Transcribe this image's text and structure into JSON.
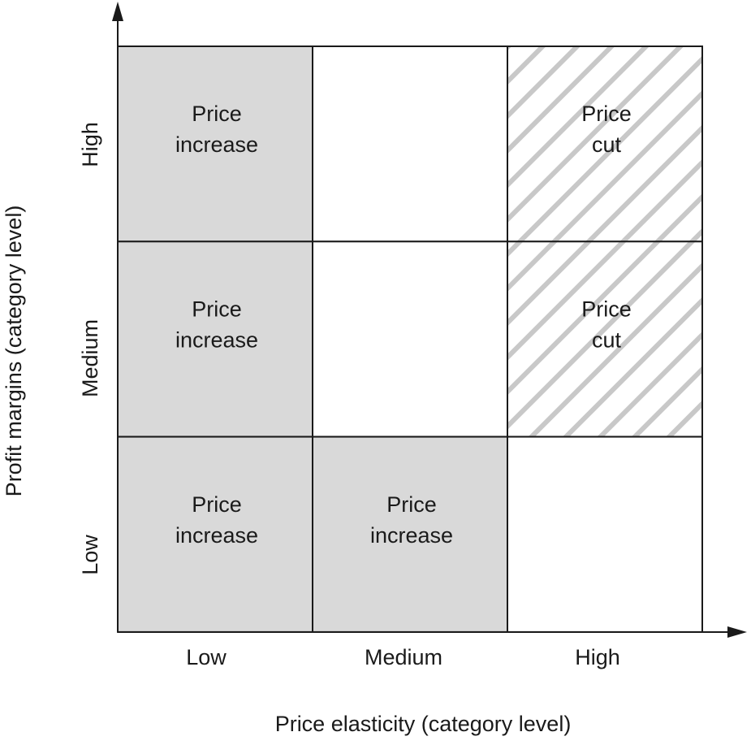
{
  "diagram": {
    "x_axis": {
      "title": "Price elasticity (category level)",
      "ticks": [
        "Low",
        "Medium",
        "High"
      ]
    },
    "y_axis": {
      "title": "Profit margins (category level)",
      "ticks": [
        "High",
        "Medium",
        "Low"
      ]
    },
    "colors": {
      "increase_fill": "#d9d9d9",
      "hatch": "#c8c8c8",
      "grid": "#1a1a1a"
    },
    "rows": [
      {
        "margin": "High",
        "cells": [
          {
            "elasticity": "Low",
            "style": "increase",
            "line1": "Price",
            "line2": "increase"
          },
          {
            "elasticity": "Medium",
            "style": "blank",
            "line1": "",
            "line2": ""
          },
          {
            "elasticity": "High",
            "style": "cut",
            "line1": "Price",
            "line2": "cut"
          }
        ]
      },
      {
        "margin": "Medium",
        "cells": [
          {
            "elasticity": "Low",
            "style": "increase",
            "line1": "Price",
            "line2": "increase"
          },
          {
            "elasticity": "Medium",
            "style": "blank",
            "line1": "",
            "line2": ""
          },
          {
            "elasticity": "High",
            "style": "cut",
            "line1": "Price",
            "line2": "cut"
          }
        ]
      },
      {
        "margin": "Low",
        "cells": [
          {
            "elasticity": "Low",
            "style": "increase",
            "line1": "Price",
            "line2": "increase"
          },
          {
            "elasticity": "Medium",
            "style": "increase",
            "line1": "Price",
            "line2": "increase"
          },
          {
            "elasticity": "High",
            "style": "blank",
            "line1": "",
            "line2": ""
          }
        ]
      }
    ]
  }
}
